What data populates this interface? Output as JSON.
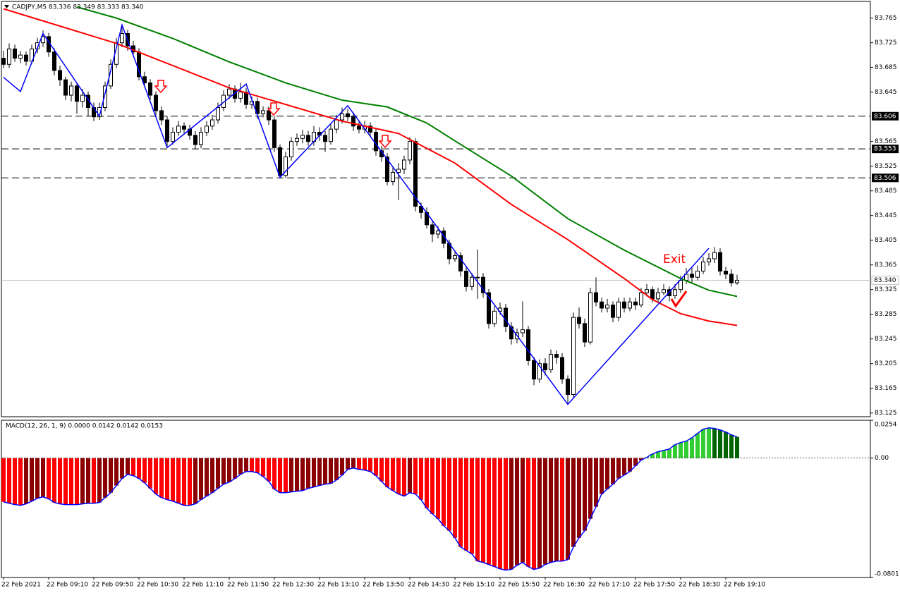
{
  "chart_data": [
    {
      "type": "candlestick",
      "title": "CADJPY,M5  83.336 83.349 83.333 83.340",
      "annotation": "Exit",
      "ylim": [
        83.119,
        83.792
      ],
      "yticks": [
        83.765,
        83.725,
        83.685,
        83.645,
        83.565,
        83.525,
        83.485,
        83.445,
        83.405,
        83.365,
        83.325,
        83.285,
        83.245,
        83.205,
        83.165,
        83.125
      ],
      "xticks": [
        {
          "value": 0,
          "label": "22 Feb 2021"
        },
        {
          "value": 8,
          "label": "22 Feb 09:10"
        },
        {
          "value": 16,
          "label": "22 Feb 09:50"
        },
        {
          "value": 24,
          "label": "22 Feb 10:30"
        },
        {
          "value": 32,
          "label": "22 Feb 11:10"
        },
        {
          "value": 40,
          "label": "22 Feb 11:50"
        },
        {
          "value": 48,
          "label": "22 Feb 12:30"
        },
        {
          "value": 56,
          "label": "22 Feb 13:10"
        },
        {
          "value": 64,
          "label": "22 Feb 13:50"
        },
        {
          "value": 72,
          "label": "22 Feb 14:30"
        },
        {
          "value": 80,
          "label": "22 Feb 15:10"
        },
        {
          "value": 88,
          "label": "22 Feb 15:50"
        },
        {
          "value": 96,
          "label": "22 Feb 16:30"
        },
        {
          "value": 104,
          "label": "22 Feb 17:10"
        },
        {
          "value": 112,
          "label": "22 Feb 17:50"
        },
        {
          "value": 120,
          "label": "22 Feb 18:30"
        },
        {
          "value": 128,
          "label": "22 Feb 19:10"
        }
      ],
      "up_color": "#ffffff",
      "down_color": "#000000",
      "levels": [
        83.606,
        83.553,
        83.506
      ],
      "current_price": {
        "value": 83.34,
        "label": "83.340"
      },
      "candles": [
        [
          83.7,
          83.712,
          83.684,
          83.69
        ],
        [
          83.69,
          83.724,
          83.684,
          83.715
        ],
        [
          83.715,
          83.722,
          83.694,
          83.7
        ],
        [
          83.7,
          83.712,
          83.692,
          83.705
        ],
        [
          83.705,
          83.711,
          83.688,
          83.695
        ],
        [
          83.695,
          83.722,
          83.69,
          83.715
        ],
        [
          83.715,
          83.733,
          83.708,
          83.725
        ],
        [
          83.725,
          83.745,
          83.718,
          83.735
        ],
        [
          83.735,
          83.741,
          83.702,
          83.71
        ],
        [
          83.71,
          83.716,
          83.672,
          83.68
        ],
        [
          83.68,
          83.688,
          83.655,
          83.665
        ],
        [
          83.665,
          83.67,
          83.632,
          83.64
        ],
        [
          83.64,
          83.662,
          83.63,
          83.655
        ],
        [
          83.655,
          83.66,
          83.61,
          83.63
        ],
        [
          83.63,
          83.65,
          83.62,
          83.64
        ],
        [
          83.64,
          83.646,
          83.606,
          83.62
        ],
        [
          83.62,
          83.628,
          83.598,
          83.605
        ],
        [
          83.605,
          83.628,
          83.6,
          83.62
        ],
        [
          83.62,
          83.662,
          83.614,
          83.655
        ],
        [
          83.655,
          83.698,
          83.65,
          83.69
        ],
        [
          83.69,
          83.733,
          83.684,
          83.725
        ],
        [
          83.725,
          83.752,
          83.718,
          83.74
        ],
        [
          83.74,
          83.746,
          83.712,
          83.72
        ],
        [
          83.72,
          83.728,
          83.702,
          83.71
        ],
        [
          83.71,
          83.716,
          83.664,
          83.67
        ],
        [
          83.67,
          83.678,
          83.652,
          83.66
        ],
        [
          83.66,
          83.666,
          83.632,
          83.64
        ],
        [
          83.64,
          83.646,
          83.608,
          83.615
        ],
        [
          83.615,
          83.622,
          83.592,
          83.6
        ],
        [
          83.6,
          83.606,
          83.556,
          83.565
        ],
        [
          83.565,
          83.588,
          83.56,
          83.58
        ],
        [
          83.58,
          83.598,
          83.574,
          83.59
        ],
        [
          83.59,
          83.596,
          83.578,
          83.585
        ],
        [
          83.585,
          83.592,
          83.568,
          83.575
        ],
        [
          83.575,
          83.582,
          83.552,
          83.56
        ],
        [
          83.56,
          83.588,
          83.554,
          83.58
        ],
        [
          83.58,
          83.598,
          83.574,
          83.59
        ],
        [
          83.59,
          83.608,
          83.584,
          83.6
        ],
        [
          83.6,
          83.628,
          83.594,
          83.62
        ],
        [
          83.62,
          83.648,
          83.614,
          83.64
        ],
        [
          83.64,
          83.658,
          83.634,
          83.65
        ],
        [
          83.65,
          83.656,
          83.628,
          83.635
        ],
        [
          83.635,
          83.66,
          83.628,
          83.645
        ],
        [
          83.645,
          83.652,
          83.618,
          83.625
        ],
        [
          83.625,
          83.638,
          83.618,
          83.63
        ],
        [
          83.63,
          83.636,
          83.602,
          83.61
        ],
        [
          83.61,
          83.622,
          83.604,
          83.615
        ],
        [
          83.615,
          83.622,
          83.592,
          83.6
        ],
        [
          83.6,
          83.606,
          83.548,
          83.555
        ],
        [
          83.555,
          83.56,
          83.505,
          83.51
        ],
        [
          83.51,
          83.548,
          83.506,
          83.54
        ],
        [
          83.54,
          83.572,
          83.534,
          83.565
        ],
        [
          83.565,
          83.578,
          83.558,
          83.57
        ],
        [
          83.57,
          83.584,
          83.562,
          83.575
        ],
        [
          83.575,
          83.582,
          83.558,
          83.565
        ],
        [
          83.565,
          83.59,
          83.558,
          83.58
        ],
        [
          83.58,
          83.588,
          83.566,
          83.575
        ],
        [
          83.575,
          83.582,
          83.548,
          83.565
        ],
        [
          83.565,
          83.594,
          83.56,
          83.585
        ],
        [
          83.585,
          83.608,
          83.578,
          83.6
        ],
        [
          83.6,
          83.62,
          83.594,
          83.61
        ],
        [
          83.61,
          83.618,
          83.598,
          83.605
        ],
        [
          83.605,
          83.612,
          83.582,
          83.59
        ],
        [
          83.59,
          83.598,
          83.578,
          83.585
        ],
        [
          83.585,
          83.598,
          83.578,
          83.59
        ],
        [
          83.59,
          83.596,
          83.572,
          83.58
        ],
        [
          83.58,
          83.586,
          83.542,
          83.55
        ],
        [
          83.55,
          83.558,
          83.532,
          83.54
        ],
        [
          83.54,
          83.546,
          83.494,
          83.5
        ],
        [
          83.5,
          83.524,
          83.494,
          83.515
        ],
        [
          83.515,
          83.53,
          83.47,
          83.52
        ],
        [
          83.52,
          83.542,
          83.512,
          83.535
        ],
        [
          83.535,
          83.572,
          83.528,
          83.565
        ],
        [
          83.565,
          83.57,
          83.452,
          83.46
        ],
        [
          83.46,
          83.466,
          83.44,
          83.45
        ],
        [
          83.45,
          83.458,
          83.424,
          83.43
        ],
        [
          83.43,
          83.436,
          83.402,
          83.415
        ],
        [
          83.415,
          83.428,
          83.408,
          83.42
        ],
        [
          83.42,
          83.426,
          83.392,
          83.4
        ],
        [
          83.4,
          83.406,
          83.366,
          83.375
        ],
        [
          83.375,
          83.388,
          83.37,
          83.38
        ],
        [
          83.38,
          83.386,
          83.346,
          83.355
        ],
        [
          83.355,
          83.362,
          83.322,
          83.33
        ],
        [
          83.33,
          83.352,
          83.324,
          83.345
        ],
        [
          83.345,
          83.39,
          83.31,
          83.345
        ],
        [
          83.345,
          83.352,
          83.312,
          83.32
        ],
        [
          83.32,
          83.326,
          83.262,
          83.27
        ],
        [
          83.27,
          83.298,
          83.264,
          83.29
        ],
        [
          83.29,
          83.304,
          83.284,
          83.295
        ],
        [
          83.295,
          83.302,
          83.256,
          83.265
        ],
        [
          83.265,
          83.272,
          83.236,
          83.245
        ],
        [
          83.245,
          83.262,
          83.238,
          83.255
        ],
        [
          83.255,
          83.306,
          83.248,
          83.26
        ],
        [
          83.26,
          83.266,
          83.202,
          83.21
        ],
        [
          83.21,
          83.216,
          83.17,
          83.18
        ],
        [
          83.18,
          83.212,
          83.174,
          83.205
        ],
        [
          83.205,
          83.214,
          83.186,
          83.195
        ],
        [
          83.195,
          83.228,
          83.19,
          83.22
        ],
        [
          83.22,
          83.226,
          83.205,
          83.215
        ],
        [
          83.215,
          83.222,
          83.172,
          83.18
        ],
        [
          83.18,
          83.186,
          83.14,
          83.155
        ],
        [
          83.155,
          83.288,
          83.15,
          83.28
        ],
        [
          83.28,
          83.296,
          83.262,
          83.27
        ],
        [
          83.27,
          83.278,
          83.232,
          83.24
        ],
        [
          83.24,
          83.328,
          83.236,
          83.32
        ],
        [
          83.32,
          83.345,
          83.298,
          83.305
        ],
        [
          83.305,
          83.312,
          83.288,
          83.295
        ],
        [
          83.295,
          83.31,
          83.288,
          83.3
        ],
        [
          83.3,
          83.306,
          83.272,
          83.28
        ],
        [
          83.28,
          83.312,
          83.274,
          83.305
        ],
        [
          83.305,
          83.312,
          83.288,
          83.295
        ],
        [
          83.295,
          83.312,
          83.29,
          83.305
        ],
        [
          83.305,
          83.312,
          83.292,
          83.3
        ],
        [
          83.3,
          83.328,
          83.296,
          83.32
        ],
        [
          83.32,
          83.334,
          83.314,
          83.325
        ],
        [
          83.325,
          83.33,
          83.304,
          83.31
        ],
        [
          83.31,
          83.328,
          83.304,
          83.32
        ],
        [
          83.32,
          83.334,
          83.316,
          83.325
        ],
        [
          83.325,
          83.33,
          83.306,
          83.315
        ],
        [
          83.315,
          83.334,
          83.31,
          83.325
        ],
        [
          83.325,
          83.348,
          83.32,
          83.34
        ],
        [
          83.34,
          83.36,
          83.334,
          83.35
        ],
        [
          83.35,
          83.362,
          83.336,
          83.345
        ],
        [
          83.345,
          83.364,
          83.34,
          83.355
        ],
        [
          83.355,
          83.378,
          83.35,
          83.37
        ],
        [
          83.37,
          83.384,
          83.364,
          83.375
        ],
        [
          83.375,
          83.394,
          83.368,
          83.385
        ],
        [
          83.385,
          83.392,
          83.348,
          83.355
        ],
        [
          83.355,
          83.362,
          83.342,
          83.35
        ],
        [
          83.35,
          83.358,
          83.33,
          83.336
        ],
        [
          83.336,
          83.349,
          83.333,
          83.34
        ]
      ],
      "ma": [
        {
          "color": "#ff0000",
          "x": [
            0,
            20,
            40,
            60,
            70,
            80,
            90,
            100,
            110,
            115,
            120,
            125,
            130
          ],
          "values": [
            83.78,
            83.724,
            83.652,
            83.598,
            83.578,
            83.53,
            83.463,
            83.406,
            83.343,
            83.309,
            83.286,
            83.274,
            83.267
          ]
        },
        {
          "color": "#008000",
          "x": [
            13,
            20,
            30,
            40,
            50,
            60,
            68,
            75,
            80,
            90,
            100,
            110,
            120,
            125,
            130
          ],
          "values": [
            83.783,
            83.765,
            83.732,
            83.694,
            83.66,
            83.632,
            83.621,
            83.595,
            83.566,
            83.509,
            83.44,
            83.389,
            83.343,
            83.324,
            83.314
          ]
        }
      ],
      "zigzag": {
        "color": "#0000ff",
        "x": [
          0,
          3,
          7,
          17,
          21,
          29,
          43,
          49,
          61,
          100,
          125
        ],
        "values": [
          83.669,
          83.646,
          83.74,
          83.606,
          83.754,
          83.555,
          83.658,
          83.507,
          83.623,
          83.139,
          83.392
        ]
      }
    },
    {
      "type": "macd",
      "title": "MACD(12, 26, 1, 9) 0.0000 0.0142 0.0142 0.0153",
      "ylim": [
        -0.0801,
        0.0254
      ],
      "yticks": [
        0.0254,
        {
          "value": 0,
          "label": "0.00"
        },
        -0.0801
      ],
      "line_color": "#0000ff",
      "colors": {
        "neg_fall": "#ff0000",
        "neg_rise": "#8b0000",
        "pos_rise": "#32cd32",
        "pos_fall": "#006400"
      },
      "values": [
        -0.0293,
        -0.0303,
        -0.0312,
        -0.0317,
        -0.0307,
        -0.0289,
        -0.027,
        -0.026,
        -0.0274,
        -0.0298,
        -0.0307,
        -0.0312,
        -0.0312,
        -0.0312,
        -0.0307,
        -0.0303,
        -0.0303,
        -0.0298,
        -0.0265,
        -0.0232,
        -0.0184,
        -0.0137,
        -0.0109,
        -0.0118,
        -0.0137,
        -0.0166,
        -0.0203,
        -0.0241,
        -0.0265,
        -0.0279,
        -0.0289,
        -0.0303,
        -0.0317,
        -0.0317,
        -0.0307,
        -0.0279,
        -0.0255,
        -0.0232,
        -0.0203,
        -0.0175,
        -0.0161,
        -0.0137,
        -0.0109,
        -0.009,
        -0.009,
        -0.0099,
        -0.0123,
        -0.0156,
        -0.0208,
        -0.0232,
        -0.0232,
        -0.0227,
        -0.0222,
        -0.0218,
        -0.0203,
        -0.0194,
        -0.0184,
        -0.0175,
        -0.017,
        -0.0147,
        -0.0114,
        -0.0076,
        -0.0066,
        -0.0076,
        -0.008,
        -0.009,
        -0.0118,
        -0.0156,
        -0.0194,
        -0.0218,
        -0.0241,
        -0.0255,
        -0.0232,
        -0.0241,
        -0.0279,
        -0.0336,
        -0.0374,
        -0.0407,
        -0.0454,
        -0.0487,
        -0.0535,
        -0.0596,
        -0.062,
        -0.0643,
        -0.0691,
        -0.07,
        -0.0714,
        -0.0728,
        -0.0743,
        -0.0752,
        -0.0747,
        -0.0719,
        -0.07,
        -0.0728,
        -0.0747,
        -0.0738,
        -0.0714,
        -0.07,
        -0.0691,
        -0.0691,
        -0.0681,
        -0.0596,
        -0.0535,
        -0.0487,
        -0.0407,
        -0.0326,
        -0.0241,
        -0.0208,
        -0.0175,
        -0.0137,
        -0.0114,
        -0.009,
        -0.0052,
        -0.0014,
        0.0005,
        0.0028,
        0.0043,
        0.0052,
        0.0061,
        0.009,
        0.0104,
        0.0114,
        0.0137,
        0.0166,
        0.0194,
        0.0203,
        0.0199,
        0.0189,
        0.0175,
        0.0156,
        0.0142
      ]
    }
  ]
}
